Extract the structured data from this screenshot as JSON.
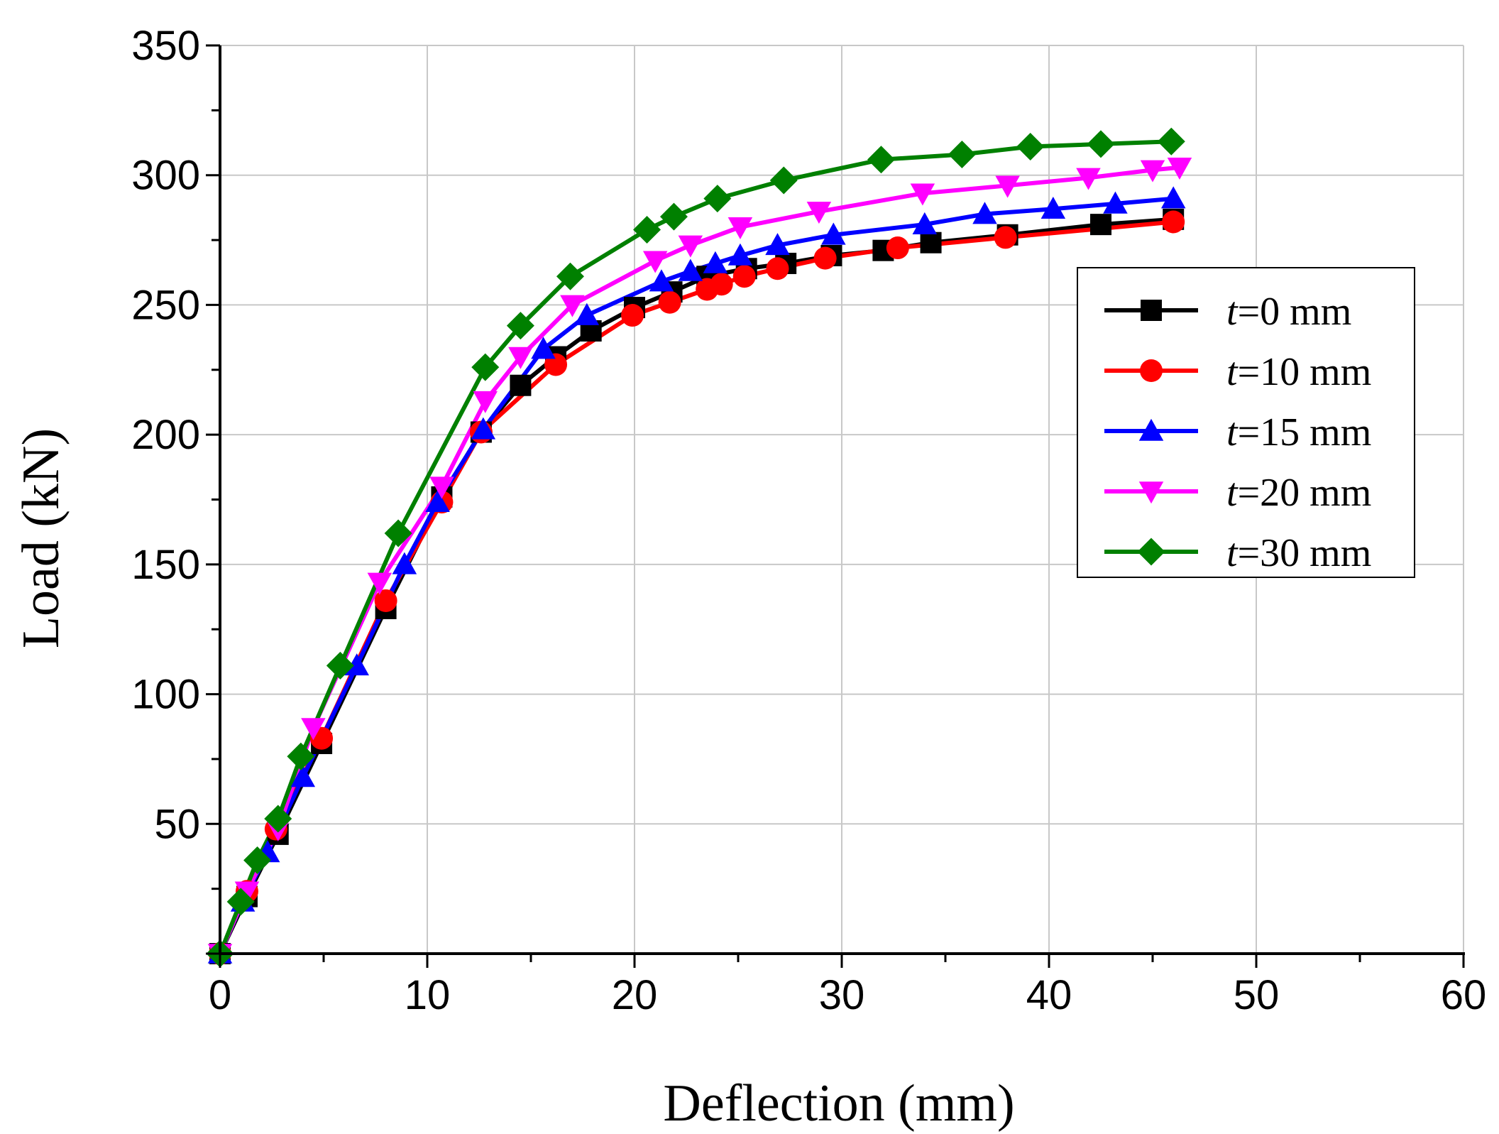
{
  "chart_data": {
    "type": "line",
    "xlabel": "Deflection (mm)",
    "ylabel": "Load (kN)",
    "xlim": [
      0,
      60
    ],
    "ylim": [
      0,
      350
    ],
    "xticks": [
      0,
      10,
      20,
      30,
      40,
      50,
      60
    ],
    "xtick_labels": [
      "0",
      "10",
      "20",
      "30",
      "40",
      "50",
      "60"
    ],
    "yticks": [
      50,
      100,
      150,
      200,
      250,
      300,
      350
    ],
    "ytick_labels": [
      "50",
      "100",
      "150",
      "200",
      "250",
      "300",
      "350"
    ],
    "grid": true,
    "legend_position": "right",
    "series": [
      {
        "name": "t=0 mm",
        "legend_prefix": "t",
        "legend_suffix": "=0 mm",
        "color": "#000000",
        "marker": "square",
        "x": [
          0,
          1.3,
          2.8,
          4.9,
          8.0,
          10.7,
          12.6,
          14.5,
          16.2,
          17.9,
          20.0,
          21.8,
          23.5,
          25.4,
          27.3,
          29.5,
          32.0,
          34.3,
          38.0,
          42.5,
          46.0
        ],
        "y": [
          0,
          22,
          46,
          81,
          133,
          176,
          201,
          219,
          230,
          240,
          249,
          255,
          261,
          264,
          266,
          269,
          271,
          274,
          277,
          281,
          283
        ]
      },
      {
        "name": "t=10 mm",
        "legend_prefix": "t",
        "legend_suffix": "=10 mm",
        "color": "#ff0000",
        "marker": "circle",
        "x": [
          0,
          1.3,
          2.7,
          4.9,
          8.0,
          10.7,
          12.6,
          16.2,
          19.9,
          21.7,
          23.5,
          24.2,
          25.3,
          26.9,
          29.2,
          32.7,
          37.9,
          46.0
        ],
        "y": [
          0,
          24,
          48,
          83,
          136,
          174,
          201,
          227,
          246,
          251,
          256,
          258,
          261,
          264,
          268,
          272,
          276,
          282
        ]
      },
      {
        "name": "t=15 mm",
        "legend_prefix": "t",
        "legend_suffix": "=15 mm",
        "color": "#0000ff",
        "marker": "triangle-up",
        "x": [
          0,
          1.1,
          2.3,
          4.0,
          6.6,
          8.9,
          10.5,
          12.7,
          15.6,
          17.7,
          21.3,
          22.7,
          23.9,
          25.1,
          26.9,
          29.6,
          34.0,
          36.9,
          40.2,
          43.2,
          46.0
        ],
        "y": [
          0,
          20,
          39,
          68,
          111,
          150,
          174,
          202,
          233,
          246,
          259,
          263,
          266,
          269,
          273,
          277,
          281,
          285,
          287,
          289,
          291
        ]
      },
      {
        "name": "t=20 mm",
        "legend_prefix": "t",
        "legend_suffix": "=20 mm",
        "color": "#ff00ff",
        "marker": "triangle-down",
        "x": [
          0,
          1.3,
          2.8,
          4.5,
          7.7,
          10.7,
          12.8,
          14.5,
          17.0,
          21.0,
          22.7,
          25.1,
          28.9,
          33.9,
          38.0,
          41.9,
          45.0,
          46.3
        ],
        "y": [
          0,
          24,
          48,
          87,
          143,
          180,
          213,
          230,
          250,
          267,
          273,
          280,
          286,
          293,
          296,
          299,
          302,
          303
        ]
      },
      {
        "name": "t=30 mm",
        "legend_prefix": "t",
        "legend_suffix": "=30 mm",
        "color": "#008000",
        "marker": "diamond",
        "x": [
          0,
          1.0,
          1.8,
          2.8,
          3.9,
          5.8,
          8.6,
          12.8,
          14.5,
          16.9,
          20.6,
          21.9,
          24.0,
          27.2,
          31.9,
          35.8,
          39.1,
          42.5,
          45.9
        ],
        "y": [
          0,
          20,
          36,
          52,
          76,
          111,
          162,
          226,
          242,
          261,
          279,
          284,
          291,
          298,
          306,
          308,
          311,
          312,
          313
        ]
      }
    ]
  }
}
